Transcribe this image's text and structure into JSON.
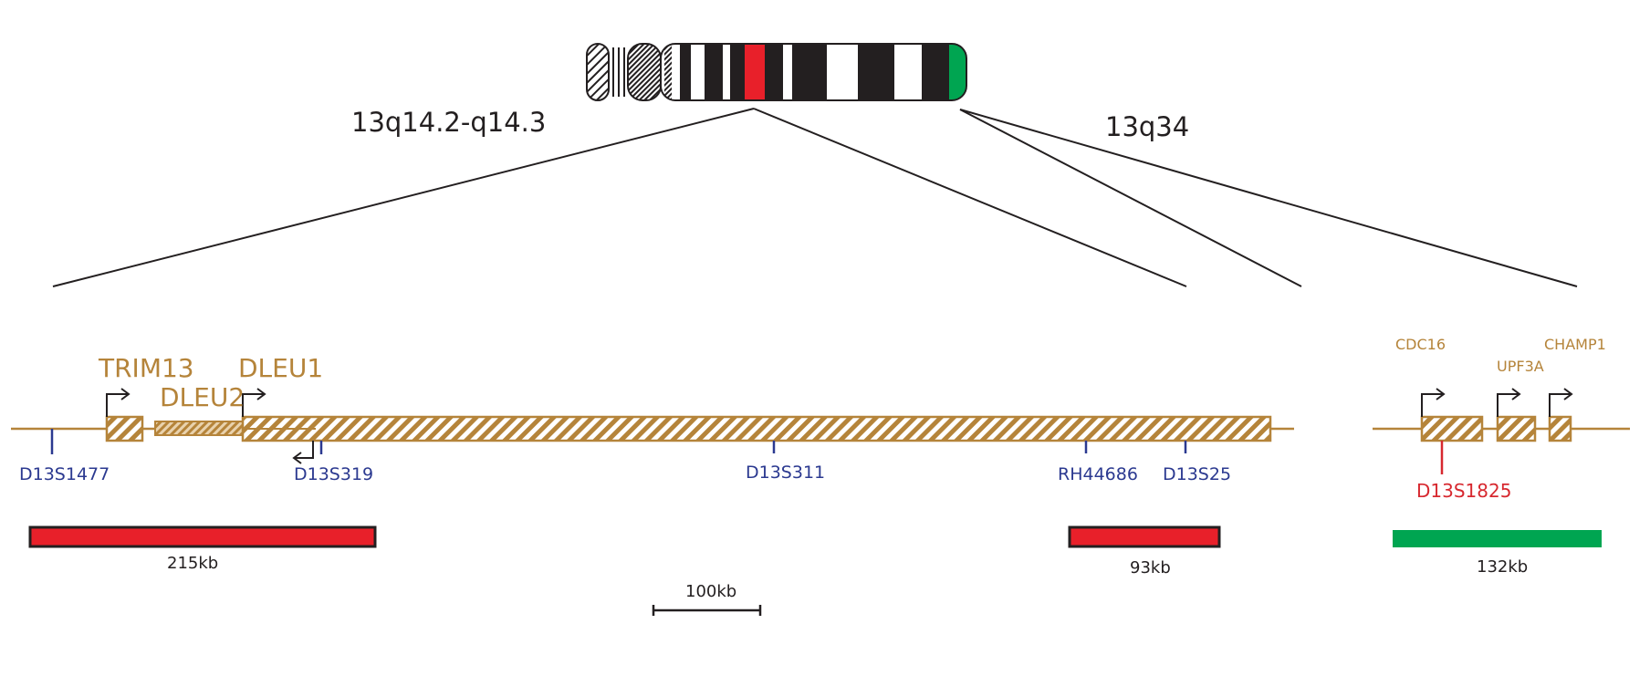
{
  "regions": {
    "left": "13q14.2-q14.3",
    "right": "13q34"
  },
  "genes": {
    "trim13": "TRIM13",
    "dleu2": "DLEU2",
    "dleu1": "DLEU1",
    "cdc16": "CDC16",
    "upf3a": "UPF3A",
    "champ1": "CHAMP1"
  },
  "markers": {
    "d13s1477": "D13S1477",
    "d13s319": "D13S319",
    "d13s311": "D13S311",
    "rh44686": "RH44686",
    "d13s25": "D13S25",
    "d13s1825": "D13S1825"
  },
  "deletions": {
    "left": "215kb",
    "middle": "93kb",
    "right": "132kb"
  },
  "scale_bar": "100kb",
  "colors": {
    "gene": "#b5843a",
    "marker": "#2b3990",
    "highlight_marker": "#d7282f",
    "deletion_red": "#e8202a",
    "deletion_green": "#00a551",
    "band_red": "#e8202a",
    "band_green": "#00a551"
  }
}
